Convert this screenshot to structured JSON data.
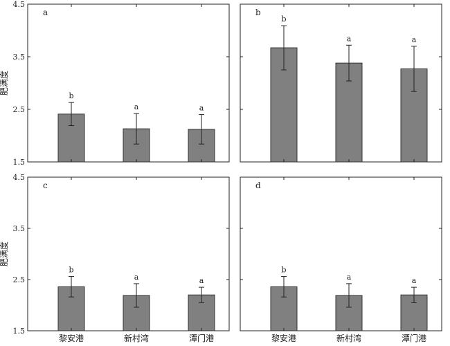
{
  "chart_data": [
    {
      "type": "bar",
      "panel_label": "a",
      "categories": [
        "黎安港",
        "新村湾",
        "潭门港"
      ],
      "values": [
        2.41,
        2.13,
        2.12
      ],
      "errors": [
        0.22,
        0.29,
        0.28
      ],
      "significance": [
        "b",
        "a",
        "a"
      ],
      "ylabel": "肥满度",
      "ylim": [
        1.5,
        4.5
      ],
      "yticks": [
        "1.5",
        "2.5",
        "3.5",
        "4.5"
      ],
      "show_category_labels": false,
      "bar_color": "#808080"
    },
    {
      "type": "bar",
      "panel_label": "b",
      "categories": [
        "黎安港",
        "新村湾",
        "潭门港"
      ],
      "values": [
        3.67,
        3.38,
        3.27
      ],
      "errors": [
        0.42,
        0.34,
        0.43
      ],
      "significance": [
        "b",
        "a",
        "a"
      ],
      "ylabel": "",
      "ylim": [
        1.5,
        4.5
      ],
      "yticks": [],
      "show_category_labels": false,
      "bar_color": "#808080"
    },
    {
      "type": "bar",
      "panel_label": "c",
      "categories": [
        "黎安港",
        "新村湾",
        "潭门港"
      ],
      "values": [
        2.36,
        2.19,
        2.2
      ],
      "errors": [
        0.2,
        0.23,
        0.15
      ],
      "significance": [
        "b",
        "a",
        "a"
      ],
      "ylabel": "肥满度",
      "ylim": [
        1.5,
        4.5
      ],
      "yticks": [
        "1.5",
        "2.5",
        "3.5",
        "4.5"
      ],
      "show_category_labels": true,
      "bar_color": "#808080"
    },
    {
      "type": "bar",
      "panel_label": "d",
      "categories": [
        "黎安港",
        "新村湾",
        "潭门港"
      ],
      "values": [
        2.36,
        2.19,
        2.2
      ],
      "errors": [
        0.2,
        0.23,
        0.15
      ],
      "significance": [
        "b",
        "a",
        "a"
      ],
      "ylabel": "",
      "ylim": [
        1.5,
        4.5
      ],
      "yticks": [],
      "show_category_labels": true,
      "bar_color": "#808080"
    }
  ]
}
